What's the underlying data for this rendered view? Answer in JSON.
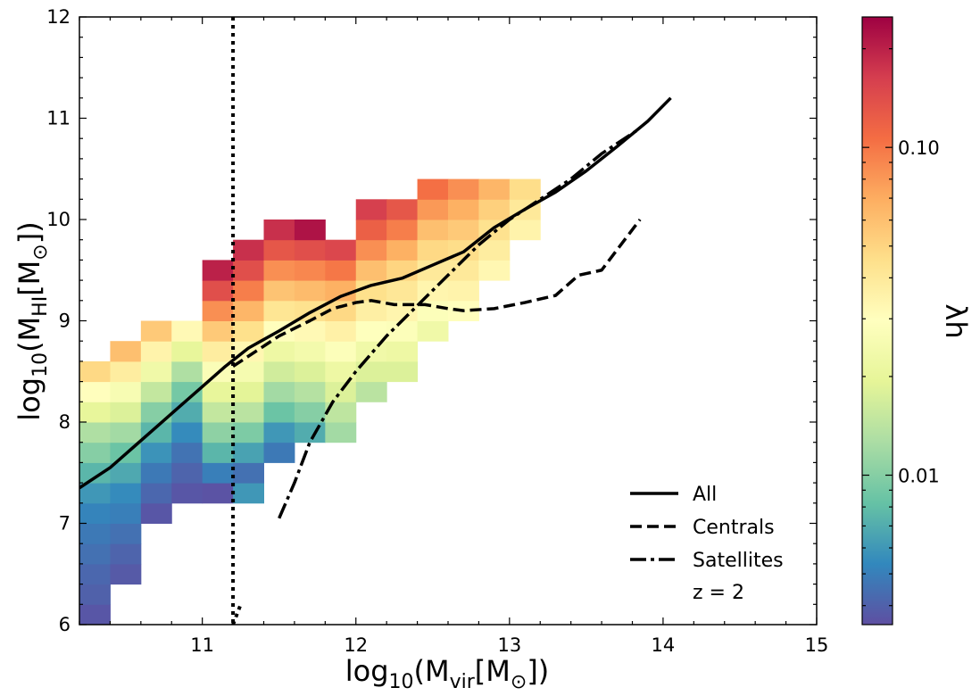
{
  "chart_data": {
    "type": "heatmap",
    "xlabel": {
      "base": "log",
      "sub": "10",
      "open": "(M",
      "msub": "vir",
      "rest": "[M",
      "sun": "⊙",
      "close": "])"
    },
    "ylabel": {
      "base": "log",
      "sub": "10",
      "open": "(M",
      "msub": "HI",
      "rest": "[M",
      "sun": "⊙",
      "close": "])"
    },
    "xlim": [
      10.2,
      15
    ],
    "ylim": [
      6,
      12
    ],
    "xticks": [
      11,
      12,
      13,
      14,
      15
    ],
    "yticks": [
      6,
      7,
      8,
      9,
      10,
      11,
      12
    ],
    "xticklabels": [
      "11",
      "12",
      "13",
      "14",
      "15"
    ],
    "yticklabels": [
      "6",
      "7",
      "8",
      "9",
      "10",
      "11",
      "12"
    ],
    "bin_width_x": 0.2,
    "bin_width_y": 0.2,
    "heatmap_columns": [
      {
        "x0": 10.2,
        "y0": 6.0,
        "values": [
          0.0037,
          0.004,
          0.0042,
          0.0045,
          0.0048,
          0.0052,
          0.006,
          0.0075,
          0.01,
          0.013,
          0.02,
          0.03,
          0.048
        ]
      },
      {
        "x0": 10.4,
        "y0": 6.4,
        "values": [
          0.0038,
          0.0041,
          0.0045,
          0.005,
          0.0055,
          0.0068,
          0.0085,
          0.012,
          0.018,
          0.026,
          0.038,
          0.06
        ]
      },
      {
        "x0": 10.6,
        "y0": 7.0,
        "values": [
          0.0037,
          0.0042,
          0.0048,
          0.0058,
          0.0075,
          0.01,
          0.015,
          0.023,
          0.035,
          0.055
        ]
      },
      {
        "x0": 10.8,
        "y0": 7.2,
        "values": [
          0.0037,
          0.0041,
          0.0046,
          0.0055,
          0.007,
          0.009,
          0.013,
          0.02,
          0.032
        ]
      },
      {
        "x0": 11.0,
        "y0": 7.2,
        "values": [
          0.0036,
          0.005,
          0.0075,
          0.0105,
          0.015,
          0.02,
          0.027,
          0.038,
          0.055,
          0.085,
          0.14,
          0.2
        ]
      },
      {
        "x0": 11.2,
        "y0": 7.2,
        "values": [
          0.006,
          0.0045,
          0.0065,
          0.0095,
          0.014,
          0.019,
          0.025,
          0.033,
          0.045,
          0.065,
          0.095,
          0.14,
          0.18
        ]
      },
      {
        "x0": 11.4,
        "y0": 7.6,
        "values": [
          0.0048,
          0.006,
          0.0085,
          0.012,
          0.0165,
          0.022,
          0.03,
          0.042,
          0.058,
          0.085,
          0.13,
          0.18
        ]
      },
      {
        "x0": 11.6,
        "y0": 7.8,
        "values": [
          0.007,
          0.01,
          0.0135,
          0.018,
          0.024,
          0.032,
          0.044,
          0.062,
          0.09,
          0.14,
          0.22
        ]
      },
      {
        "x0": 11.8,
        "y0": 7.8,
        "values": [
          0.012,
          0.0145,
          0.018,
          0.022,
          0.028,
          0.036,
          0.048,
          0.068,
          0.1,
          0.15
        ]
      },
      {
        "x0": 12.0,
        "y0": 8.2,
        "values": [
          0.014,
          0.018,
          0.023,
          0.029,
          0.037,
          0.045,
          0.06,
          0.085,
          0.12,
          0.16
        ]
      },
      {
        "x0": 12.2,
        "y0": 8.4,
        "values": [
          0.018,
          0.022,
          0.028,
          0.034,
          0.041,
          0.05,
          0.068,
          0.095,
          0.13
        ]
      },
      {
        "x0": 12.4,
        "y0": 8.8,
        "values": [
          0.023,
          0.028,
          0.034,
          0.04,
          0.048,
          0.06,
          0.08,
          0.105
        ]
      },
      {
        "x0": 12.6,
        "y0": 9.0,
        "values": [
          0.03,
          0.035,
          0.04,
          0.046,
          0.055,
          0.068,
          0.085
        ]
      },
      {
        "x0": 12.8,
        "y0": 9.4,
        "values": [
          0.033,
          0.038,
          0.044,
          0.052,
          0.065
        ]
      },
      {
        "x0": 13.0,
        "y0": 9.8,
        "values": [
          0.035,
          0.04,
          0.046
        ]
      }
    ],
    "series": [
      {
        "name": "All",
        "dash": "solid",
        "x": [
          10.2,
          10.4,
          10.55,
          10.7,
          10.85,
          11.0,
          11.15,
          11.3,
          11.5,
          11.7,
          11.9,
          12.1,
          12.3,
          12.5,
          12.7,
          12.9,
          13.1,
          13.3,
          13.5,
          13.7,
          13.9,
          14.05
        ],
        "y": [
          7.35,
          7.55,
          7.75,
          7.95,
          8.15,
          8.35,
          8.55,
          8.73,
          8.9,
          9.08,
          9.24,
          9.35,
          9.42,
          9.55,
          9.68,
          9.92,
          10.1,
          10.27,
          10.48,
          10.72,
          10.97,
          11.2
        ]
      },
      {
        "name": "Centrals",
        "dash": "dashed",
        "x": [
          11.2,
          11.35,
          11.5,
          11.7,
          11.85,
          12.0,
          12.1,
          12.25,
          12.45,
          12.6,
          12.7,
          12.9,
          13.1,
          13.3,
          13.45,
          13.6,
          13.7,
          13.85
        ],
        "y": [
          8.55,
          8.7,
          8.85,
          9.0,
          9.12,
          9.18,
          9.2,
          9.16,
          9.16,
          9.12,
          9.1,
          9.12,
          9.18,
          9.25,
          9.45,
          9.5,
          9.7,
          10.0
        ]
      },
      {
        "name": "Satellites",
        "dash": "dashdot",
        "x": [
          11.5,
          11.6,
          11.7,
          11.85,
          12.0,
          12.2,
          12.4,
          12.6,
          12.8,
          13.0,
          13.2,
          13.4,
          13.6,
          13.85
        ],
        "y": [
          7.05,
          7.4,
          7.8,
          8.2,
          8.5,
          8.85,
          9.15,
          9.45,
          9.75,
          10.0,
          10.2,
          10.4,
          10.65,
          10.9
        ]
      }
    ],
    "vline": {
      "x": 11.2,
      "style": "dotted",
      "tail_x": 11.25,
      "tail_y": 6.2
    },
    "legend": {
      "entries": [
        "All",
        "Centrals",
        "Satellites"
      ],
      "annotation": "z = 2",
      "location": "lower-right"
    },
    "colorbar": {
      "label": "λh",
      "scale": "log",
      "min": 0.0035,
      "max": 0.25,
      "ticks": [
        0.01,
        0.1
      ],
      "ticklabels": [
        "0.01",
        "0.10"
      ],
      "colormap": [
        "#5e4fa2",
        "#3288bd",
        "#66c2a5",
        "#abdda4",
        "#e6f598",
        "#ffffbf",
        "#fee08b",
        "#fdae61",
        "#f46d43",
        "#d53e4f",
        "#9e0142"
      ]
    }
  }
}
